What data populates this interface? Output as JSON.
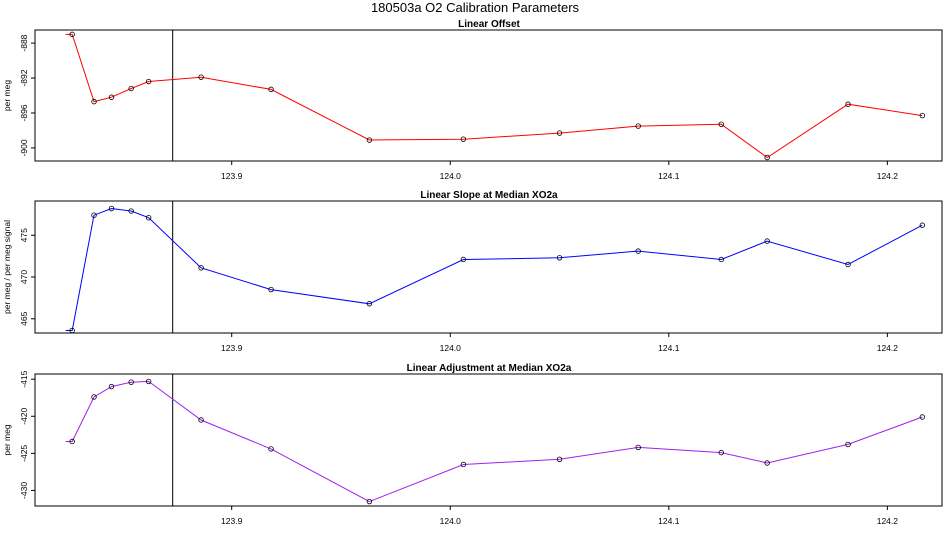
{
  "figure": {
    "title": "180503a   O2 Calibration Parameters"
  },
  "chart_data": [
    {
      "type": "line",
      "title": "Linear Offset",
      "xlabel": "",
      "ylabel": "per meg",
      "color": "#ff0000",
      "xlim": [
        123.81,
        124.225
      ],
      "ylim": [
        -901.5,
        -886.5
      ],
      "xticks": [
        123.9,
        124.0,
        124.1,
        124.2
      ],
      "xtick_labels": [
        "123.9",
        "124.0",
        "124.1",
        "124.2"
      ],
      "yticks": [
        -888,
        -892,
        -896,
        -900
      ],
      "ytick_labels": [
        "-888",
        "-892",
        "-896",
        "-900"
      ],
      "vline_x": 123.873,
      "line_start_x": 123.824,
      "x": [
        123.827,
        123.837,
        123.845,
        123.854,
        123.862,
        123.886,
        123.918,
        123.963,
        124.006,
        124.05,
        124.086,
        124.124,
        124.145,
        124.182,
        124.216
      ],
      "y": [
        -887.0,
        -894.7,
        -894.2,
        -893.2,
        -892.4,
        -891.9,
        -893.3,
        -899.1,
        -899.0,
        -898.3,
        -897.5,
        -897.3,
        -901.1,
        -895.0,
        -896.3
      ]
    },
    {
      "type": "line",
      "title": "Linear Slope at Median XO2a",
      "xlabel": "",
      "ylabel": "per meg / per meg signal",
      "color": "#0000ff",
      "xlim": [
        123.81,
        124.225
      ],
      "ylim": [
        463.3,
        479.1
      ],
      "xticks": [
        123.9,
        124.0,
        124.1,
        124.2
      ],
      "xtick_labels": [
        "123.9",
        "124.0",
        "124.1",
        "124.2"
      ],
      "yticks": [
        465,
        470,
        475
      ],
      "ytick_labels": [
        "465",
        "470",
        "475"
      ],
      "vline_x": 123.873,
      "line_start_x": 123.824,
      "x": [
        123.827,
        123.837,
        123.845,
        123.854,
        123.862,
        123.886,
        123.918,
        123.963,
        124.006,
        124.05,
        124.086,
        124.124,
        124.145,
        124.182,
        124.216
      ],
      "y": [
        463.6,
        477.4,
        478.2,
        477.9,
        477.1,
        471.1,
        468.5,
        466.8,
        472.1,
        472.3,
        473.1,
        472.1,
        474.3,
        471.5,
        476.2
      ]
    },
    {
      "type": "line",
      "title": "Linear Adjustment at Median XO2a",
      "xlabel": "",
      "ylabel": "per meg",
      "color": "#a020f0",
      "xlim": [
        123.81,
        124.225
      ],
      "ylim": [
        -432.1,
        -414.3
      ],
      "xticks": [
        123.9,
        124.0,
        124.1,
        124.2
      ],
      "xtick_labels": [
        "123.9",
        "124.0",
        "124.1",
        "124.2"
      ],
      "yticks": [
        -415,
        -420,
        -425,
        -430
      ],
      "ytick_labels": [
        "-415",
        "-420",
        "-425",
        "-430"
      ],
      "vline_x": 123.873,
      "line_start_x": 123.824,
      "x": [
        123.827,
        123.837,
        123.845,
        123.854,
        123.862,
        123.886,
        123.918,
        123.963,
        124.006,
        124.05,
        124.086,
        124.124,
        124.145,
        124.182,
        124.216
      ],
      "y": [
        -423.4,
        -417.4,
        -416.0,
        -415.4,
        -415.3,
        -420.5,
        -424.4,
        -431.5,
        -426.5,
        -425.8,
        -424.2,
        -424.9,
        -426.3,
        -423.8,
        -420.1
      ]
    }
  ]
}
